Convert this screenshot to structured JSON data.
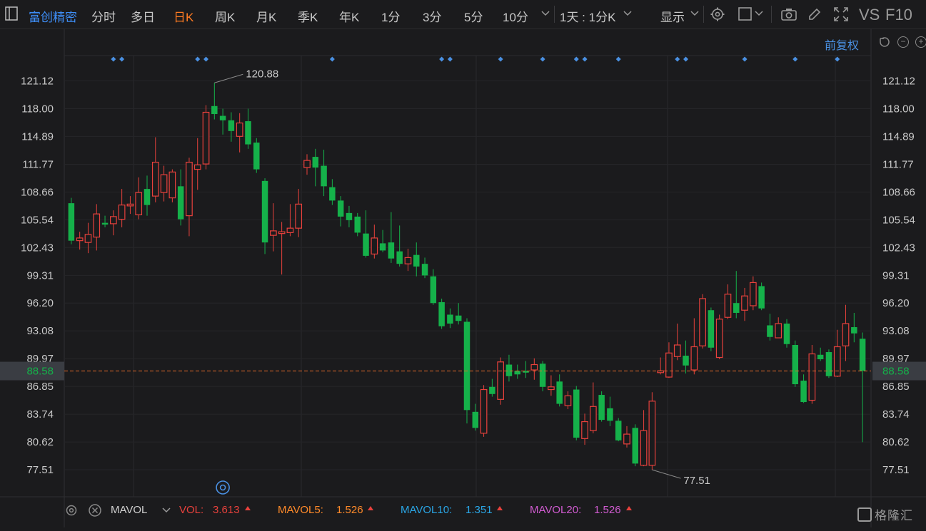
{
  "toolbar": {
    "brand": "富创精密",
    "periods": [
      "分时",
      "多日",
      "日K",
      "周K",
      "月K",
      "季K",
      "年K",
      "1分",
      "3分",
      "5分",
      "10分"
    ],
    "active_period": "日K",
    "interval_select": "1天 : 1分K",
    "display_label": "显示",
    "vs_label": "VS",
    "f10_label": "F10"
  },
  "subbar": {
    "adjust_label": "前复权"
  },
  "colors": {
    "up": "#e8413c",
    "down": "#15b14a",
    "accent": "#ff7b22",
    "brand": "#3e8ef7",
    "price_line": "#e86a2a"
  },
  "chart_data": {
    "type": "candlestick",
    "y_ticks": [
      "121.12",
      "118.00",
      "114.89",
      "111.77",
      "108.66",
      "105.54",
      "102.43",
      "99.31",
      "96.20",
      "93.08",
      "89.97",
      "86.85",
      "83.74",
      "80.62",
      "77.51"
    ],
    "ylim": [
      74.4,
      124.3
    ],
    "current_price": "88.58",
    "max_label": "120.88",
    "min_label": "77.51",
    "event_marker_count": 14,
    "candles": [
      [
        107.4,
        103.2,
        108.0,
        102.8
      ],
      [
        103.2,
        103.5,
        104.2,
        102.2
      ],
      [
        103.0,
        103.9,
        105.2,
        101.8
      ],
      [
        103.6,
        106.2,
        107.3,
        102.1
      ],
      [
        105.2,
        105.0,
        106.0,
        104.7
      ],
      [
        105.1,
        105.9,
        106.6,
        103.8
      ],
      [
        105.6,
        107.2,
        109.0,
        104.7
      ],
      [
        107.1,
        107.3,
        108.2,
        106.2
      ],
      [
        106.1,
        108.6,
        110.3,
        105.6
      ],
      [
        109.0,
        107.2,
        110.5,
        106.0
      ],
      [
        108.2,
        112.0,
        114.8,
        107.5
      ],
      [
        108.6,
        110.6,
        111.6,
        107.6
      ],
      [
        108.0,
        110.9,
        111.2,
        107.5
      ],
      [
        109.3,
        105.6,
        111.2,
        104.9
      ],
      [
        106.0,
        112.0,
        112.5,
        103.7
      ],
      [
        111.2,
        111.7,
        114.7,
        108.9
      ],
      [
        111.8,
        117.6,
        118.4,
        111.2
      ],
      [
        118.3,
        117.4,
        120.9,
        116.8
      ],
      [
        117.2,
        116.7,
        118.0,
        115.1
      ],
      [
        116.7,
        115.5,
        117.6,
        114.3
      ],
      [
        114.9,
        116.4,
        117.5,
        113.1
      ],
      [
        116.6,
        114.0,
        118.0,
        113.5
      ],
      [
        114.2,
        111.2,
        114.7,
        110.8
      ],
      [
        109.9,
        103.0,
        110.2,
        101.7
      ],
      [
        103.8,
        104.3,
        107.4,
        102.0
      ],
      [
        104.0,
        104.2,
        105.3,
        99.4
      ],
      [
        104.1,
        104.6,
        107.3,
        103.7
      ],
      [
        104.6,
        107.3,
        109.0,
        103.6
      ],
      [
        111.4,
        112.2,
        112.9,
        110.6
      ],
      [
        112.6,
        111.4,
        113.5,
        109.3
      ],
      [
        111.6,
        109.3,
        113.4,
        108.2
      ],
      [
        109.2,
        107.7,
        110.1,
        107.2
      ],
      [
        107.7,
        105.9,
        108.2,
        104.8
      ],
      [
        106.3,
        105.5,
        107.1,
        104.7
      ],
      [
        105.9,
        104.1,
        106.3,
        103.7
      ],
      [
        104.0,
        101.5,
        106.6,
        101.3
      ],
      [
        101.7,
        103.5,
        105.0,
        101.2
      ],
      [
        102.9,
        102.1,
        104.4,
        101.9
      ],
      [
        103.0,
        101.2,
        106.4,
        100.7
      ],
      [
        102.0,
        100.6,
        104.9,
        100.3
      ],
      [
        100.6,
        101.3,
        102.3,
        99.8
      ],
      [
        101.6,
        100.3,
        103.0,
        99.2
      ],
      [
        100.6,
        99.3,
        101.3,
        99.0
      ],
      [
        99.2,
        96.2,
        100.0,
        96.0
      ],
      [
        96.3,
        93.6,
        96.7,
        93.3
      ],
      [
        94.9,
        93.9,
        95.6,
        93.4
      ],
      [
        94.8,
        94.2,
        96.2,
        93.8
      ],
      [
        94.1,
        84.2,
        94.5,
        82.7
      ],
      [
        84.0,
        82.2,
        84.9,
        81.9
      ],
      [
        81.6,
        86.5,
        87.0,
        81.2
      ],
      [
        86.8,
        86.0,
        87.7,
        85.7
      ],
      [
        85.4,
        89.6,
        90.1,
        84.8
      ],
      [
        89.3,
        88.0,
        90.4,
        87.4
      ],
      [
        88.6,
        88.2,
        89.3,
        87.7
      ],
      [
        88.6,
        88.4,
        89.7,
        87.8
      ],
      [
        88.7,
        89.3,
        90.0,
        87.6
      ],
      [
        89.4,
        86.8,
        89.7,
        86.3
      ],
      [
        86.5,
        86.8,
        88.1,
        85.8
      ],
      [
        87.4,
        84.9,
        88.2,
        84.6
      ],
      [
        84.7,
        85.8,
        86.3,
        84.3
      ],
      [
        86.5,
        81.1,
        86.9,
        80.8
      ],
      [
        81.0,
        82.9,
        83.8,
        80.3
      ],
      [
        81.9,
        84.6,
        87.3,
        81.6
      ],
      [
        85.9,
        83.1,
        86.3,
        82.9
      ],
      [
        84.4,
        83.0,
        85.7,
        82.4
      ],
      [
        83.0,
        80.8,
        83.3,
        80.7
      ],
      [
        80.4,
        81.5,
        82.4,
        80.0
      ],
      [
        82.2,
        78.2,
        82.6,
        77.9
      ],
      [
        78.0,
        81.9,
        84.2,
        77.9
      ],
      [
        78.0,
        85.2,
        86.2,
        77.5
      ],
      [
        88.4,
        88.6,
        90.1,
        88.2
      ],
      [
        87.9,
        90.6,
        91.8,
        87.8
      ],
      [
        90.2,
        91.5,
        93.9,
        89.8
      ],
      [
        90.3,
        89.2,
        92.0,
        88.3
      ],
      [
        88.7,
        91.3,
        94.5,
        88.2
      ],
      [
        91.4,
        96.7,
        97.2,
        91.1
      ],
      [
        95.4,
        91.2,
        95.7,
        90.8
      ],
      [
        90.1,
        94.4,
        94.9,
        89.9
      ],
      [
        94.6,
        97.2,
        98.3,
        94.4
      ],
      [
        96.2,
        95.1,
        99.8,
        94.5
      ],
      [
        95.4,
        97.0,
        97.9,
        94.2
      ],
      [
        95.9,
        98.5,
        99.2,
        95.4
      ],
      [
        98.1,
        95.6,
        98.5,
        95.4
      ],
      [
        93.7,
        92.4,
        95.0,
        92.0
      ],
      [
        92.3,
        93.9,
        94.6,
        92.6
      ],
      [
        93.9,
        91.6,
        94.4,
        91.2
      ],
      [
        91.5,
        87.1,
        92.0,
        86.8
      ],
      [
        87.5,
        85.1,
        88.2,
        85.0
      ],
      [
        85.3,
        90.5,
        91.5,
        84.9
      ],
      [
        90.4,
        89.9,
        91.2,
        89.7
      ],
      [
        90.7,
        88.0,
        91.0,
        87.8
      ],
      [
        88.0,
        91.3,
        93.2,
        87.9
      ],
      [
        91.4,
        93.9,
        96.0,
        89.7
      ],
      [
        93.5,
        92.8,
        95.1,
        91.8
      ],
      [
        92.2,
        88.6,
        92.9,
        80.6
      ]
    ],
    "volume_indicator": {
      "name": "MAVOL",
      "items": [
        {
          "label": "VOL:",
          "value": "3.613",
          "color": "#e8413c"
        },
        {
          "label": "MAVOL5:",
          "value": "1.526",
          "color": "#ff8a2a"
        },
        {
          "label": "MAVOL10:",
          "value": "1.351",
          "color": "#2aa6e6"
        },
        {
          "label": "MAVOL20:",
          "value": "1.526",
          "color": "#d05bd0"
        }
      ]
    }
  },
  "watermark": "格隆汇"
}
